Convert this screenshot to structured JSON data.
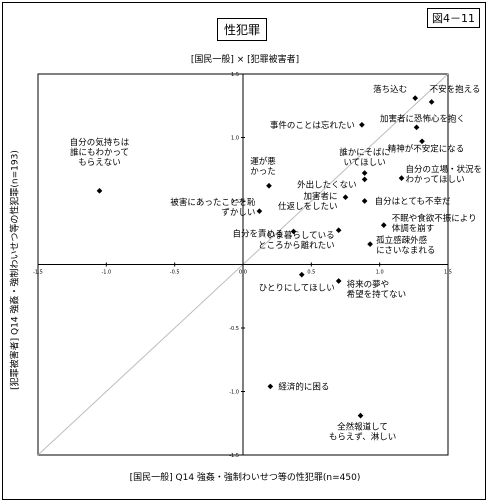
{
  "figure_label": "図4－11",
  "title": "性犯罪",
  "chart_data": {
    "type": "scatter",
    "title": "[国民一般] × [犯罪被害者]",
    "xlabel": "[国民一般] Q14 強姦・強制わいせつ等の性犯罪(n=450)",
    "ylabel": "[犯罪被害者] Q14 強姦・強制わいせつ等の性犯罪(n=193)",
    "xlim": [
      -1.5,
      1.5
    ],
    "ylim": [
      -1.5,
      1.5
    ],
    "x_ticks": [
      "-1.5",
      "-1.0",
      "-0.5",
      "0.0",
      "0.5",
      "1.0",
      "1.5"
    ],
    "y_ticks": [
      "1.5",
      "1.0",
      "0.5",
      "0.0",
      "-0.5",
      "-1.0",
      "-1.5"
    ],
    "diagonal": true,
    "grid": false,
    "points": [
      {
        "x": 1.38,
        "y": 1.28,
        "label": [
          "不安を抱える"
        ]
      },
      {
        "x": 1.26,
        "y": 1.31,
        "label": [
          "落ち込む"
        ]
      },
      {
        "x": 1.27,
        "y": 1.08,
        "label": [
          "加害者に恐怖心を抱く"
        ]
      },
      {
        "x": 0.87,
        "y": 1.1,
        "label": [
          "事件のことは忘れたい"
        ]
      },
      {
        "x": 1.31,
        "y": 0.97,
        "label": [
          "精神が不安定になる"
        ]
      },
      {
        "x": 0.89,
        "y": 0.72,
        "label": [
          "誰かにそばに",
          "いてほしい"
        ]
      },
      {
        "x": 0.89,
        "y": 0.67,
        "label": [
          "外出したくない"
        ]
      },
      {
        "x": 1.16,
        "y": 0.68,
        "label": [
          "自分の立場・状況を",
          "わかってほしい"
        ]
      },
      {
        "x": 0.19,
        "y": 0.62,
        "label": [
          "運が悪",
          "かった"
        ]
      },
      {
        "x": 0.75,
        "y": 0.53,
        "label": [
          "加害者に",
          "仕返しをしたい"
        ]
      },
      {
        "x": 0.89,
        "y": 0.5,
        "label": [
          "自分はとても不幸だ"
        ]
      },
      {
        "x": -1.05,
        "y": 0.58,
        "label": [
          "自分の気持ちは",
          "誰にもわかって",
          "もらえない"
        ]
      },
      {
        "x": 0.12,
        "y": 0.42,
        "label": [
          "被害にあったことを恥",
          "ずかしい"
        ]
      },
      {
        "x": 1.03,
        "y": 0.31,
        "label": [
          "不眠や食欲不振により",
          "体調を崩す"
        ]
      },
      {
        "x": 0.7,
        "y": 0.27,
        "label": [
          "いま暮らしている",
          "ところから離れたい"
        ]
      },
      {
        "x": 0.37,
        "y": 0.26,
        "label": [
          "自分を責める"
        ]
      },
      {
        "x": 0.93,
        "y": 0.16,
        "label": [
          "孤立感疎外感",
          "にさいなまれる"
        ]
      },
      {
        "x": 0.43,
        "y": -0.08,
        "label": [
          "ひとりにしてほしい"
        ]
      },
      {
        "x": 0.7,
        "y": -0.13,
        "label": [
          "将来の夢や",
          "希望を持てない"
        ]
      },
      {
        "x": 0.2,
        "y": -0.96,
        "label": [
          "経済的に困る"
        ]
      },
      {
        "x": 0.86,
        "y": -1.19,
        "label": [
          "全然報道して",
          "もらえず、淋しい"
        ]
      }
    ]
  }
}
